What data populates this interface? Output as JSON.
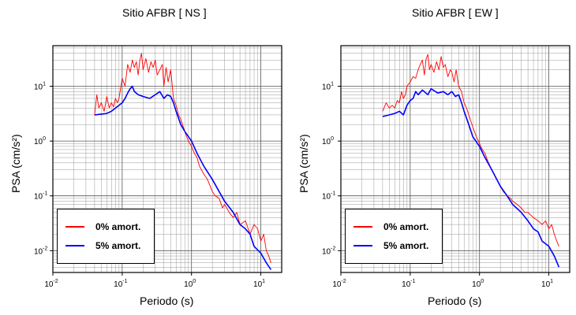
{
  "chart_data": [
    {
      "type": "line",
      "title": "Sitio AFBR [ NS ]",
      "xlabel": "Periodo (s)",
      "ylabel": "PSA (cm/s²)",
      "xscale": "log",
      "yscale": "log",
      "xlim": [
        0.01,
        20
      ],
      "ylim": [
        0.004,
        55
      ],
      "grid": true,
      "legend_placement": "bottom-left",
      "xticks": [
        {
          "base": "10",
          "exp": "-2"
        },
        {
          "base": "10",
          "exp": "-1"
        },
        {
          "base": "10",
          "exp": "0"
        },
        {
          "base": "10",
          "exp": "1"
        }
      ],
      "yticks": [
        {
          "base": "10",
          "exp": "-2"
        },
        {
          "base": "10",
          "exp": "-1"
        },
        {
          "base": "10",
          "exp": "0"
        },
        {
          "base": "10",
          "exp": "1"
        }
      ],
      "series": [
        {
          "name": "0% amort.",
          "color": "#ff0000",
          "x": [
            0.04,
            0.043,
            0.046,
            0.05,
            0.055,
            0.06,
            0.065,
            0.07,
            0.075,
            0.08,
            0.085,
            0.09,
            0.1,
            0.11,
            0.12,
            0.13,
            0.14,
            0.15,
            0.16,
            0.17,
            0.18,
            0.19,
            0.2,
            0.22,
            0.24,
            0.26,
            0.28,
            0.3,
            0.32,
            0.35,
            0.38,
            0.4,
            0.43,
            0.46,
            0.5,
            0.55,
            0.6,
            0.65,
            0.7,
            0.8,
            0.9,
            1.0,
            1.1,
            1.2,
            1.3,
            1.5,
            1.7,
            2.0,
            2.2,
            2.5,
            2.8,
            3.0,
            3.5,
            4.0,
            4.5,
            5.0,
            6.0,
            7.0,
            8.0,
            9.0,
            10.0,
            11.0,
            12.0,
            13.0,
            14.0
          ],
          "y": [
            3.0,
            7.0,
            4.0,
            5.0,
            3.5,
            6.5,
            4.0,
            5.0,
            4.2,
            6.0,
            5.0,
            6.0,
            14.0,
            10.0,
            25.0,
            18.0,
            30.0,
            22.0,
            28.0,
            16.0,
            30.0,
            40.0,
            20.0,
            32.0,
            18.0,
            28.0,
            22.0,
            30.0,
            16.0,
            20.0,
            25.0,
            10.0,
            22.0,
            12.0,
            20.0,
            6.0,
            4.5,
            3.0,
            2.5,
            1.5,
            1.0,
            0.8,
            0.6,
            0.5,
            0.35,
            0.25,
            0.2,
            0.12,
            0.1,
            0.09,
            0.06,
            0.07,
            0.05,
            0.04,
            0.05,
            0.03,
            0.035,
            0.02,
            0.03,
            0.025,
            0.015,
            0.02,
            0.01,
            0.008,
            0.006
          ]
        },
        {
          "name": "5% amort.",
          "color": "#0000ff",
          "x": [
            0.04,
            0.05,
            0.06,
            0.07,
            0.08,
            0.09,
            0.1,
            0.11,
            0.12,
            0.13,
            0.14,
            0.15,
            0.17,
            0.2,
            0.25,
            0.3,
            0.35,
            0.4,
            0.45,
            0.5,
            0.55,
            0.6,
            0.7,
            0.8,
            1.0,
            1.2,
            1.5,
            2.0,
            2.5,
            3.0,
            4.0,
            5.0,
            6.0,
            7.0,
            8.0,
            10.0,
            12.0,
            14.0
          ],
          "y": [
            3.0,
            3.1,
            3.2,
            3.5,
            4.0,
            4.5,
            5.0,
            6.0,
            7.5,
            9.0,
            10.0,
            8.0,
            7.0,
            6.5,
            6.0,
            7.0,
            8.0,
            6.0,
            7.0,
            6.5,
            5.0,
            3.5,
            2.0,
            1.5,
            1.0,
            0.6,
            0.35,
            0.2,
            0.12,
            0.08,
            0.05,
            0.03,
            0.025,
            0.02,
            0.012,
            0.009,
            0.006,
            0.0045
          ]
        }
      ]
    },
    {
      "type": "line",
      "title": "Sitio AFBR [ EW ]",
      "xlabel": "Periodo (s)",
      "ylabel": "PSA (cm/s²)",
      "xscale": "log",
      "yscale": "log",
      "xlim": [
        0.01,
        20
      ],
      "ylim": [
        0.004,
        55
      ],
      "grid": true,
      "legend_placement": "bottom-left",
      "xticks": [
        {
          "base": "10",
          "exp": "-2"
        },
        {
          "base": "10",
          "exp": "-1"
        },
        {
          "base": "10",
          "exp": "0"
        },
        {
          "base": "10",
          "exp": "1"
        }
      ],
      "yticks": [
        {
          "base": "10",
          "exp": "-2"
        },
        {
          "base": "10",
          "exp": "-1"
        },
        {
          "base": "10",
          "exp": "0"
        },
        {
          "base": "10",
          "exp": "1"
        }
      ],
      "series": [
        {
          "name": "0% amort.",
          "color": "#ff0000",
          "x": [
            0.04,
            0.045,
            0.05,
            0.055,
            0.06,
            0.065,
            0.07,
            0.075,
            0.08,
            0.085,
            0.09,
            0.1,
            0.11,
            0.12,
            0.13,
            0.14,
            0.15,
            0.16,
            0.17,
            0.18,
            0.19,
            0.2,
            0.22,
            0.24,
            0.26,
            0.28,
            0.3,
            0.32,
            0.35,
            0.38,
            0.4,
            0.43,
            0.46,
            0.5,
            0.55,
            0.6,
            0.65,
            0.7,
            0.8,
            0.9,
            1.0,
            1.1,
            1.2,
            1.3,
            1.5,
            1.7,
            2.0,
            2.2,
            2.5,
            2.8,
            3.0,
            3.5,
            4.0,
            4.5,
            5.0,
            6.0,
            7.0,
            8.0,
            9.0,
            10.0,
            11.0,
            12.0,
            13.0,
            14.0
          ],
          "y": [
            3.5,
            5.0,
            4.0,
            4.5,
            4.0,
            5.5,
            5.0,
            8.0,
            6.0,
            7.0,
            10.0,
            12.0,
            15.0,
            14.0,
            20.0,
            25.0,
            30.0,
            16.0,
            32.0,
            38.0,
            20.0,
            25.0,
            18.0,
            28.0,
            20.0,
            35.0,
            22.0,
            25.0,
            15.0,
            20.0,
            18.0,
            12.0,
            20.0,
            10.0,
            8.0,
            5.0,
            4.0,
            3.0,
            1.8,
            1.2,
            0.9,
            0.7,
            0.6,
            0.45,
            0.3,
            0.22,
            0.15,
            0.12,
            0.1,
            0.09,
            0.08,
            0.07,
            0.06,
            0.05,
            0.05,
            0.04,
            0.035,
            0.03,
            0.035,
            0.025,
            0.03,
            0.02,
            0.015,
            0.012
          ]
        },
        {
          "name": "5% amort.",
          "color": "#0000ff",
          "x": [
            0.04,
            0.05,
            0.06,
            0.07,
            0.08,
            0.09,
            0.1,
            0.11,
            0.12,
            0.13,
            0.15,
            0.18,
            0.2,
            0.25,
            0.3,
            0.35,
            0.4,
            0.45,
            0.5,
            0.55,
            0.6,
            0.7,
            0.8,
            1.0,
            1.2,
            1.5,
            2.0,
            2.5,
            3.0,
            4.0,
            5.0,
            6.0,
            7.0,
            8.0,
            10.0,
            12.0,
            14.0
          ],
          "y": [
            2.8,
            3.0,
            3.2,
            3.5,
            3.0,
            4.5,
            5.5,
            6.0,
            8.0,
            7.0,
            8.5,
            7.0,
            9.0,
            7.5,
            8.0,
            7.0,
            8.0,
            6.5,
            7.0,
            5.0,
            3.5,
            2.0,
            1.2,
            0.8,
            0.5,
            0.3,
            0.15,
            0.1,
            0.07,
            0.05,
            0.035,
            0.025,
            0.022,
            0.015,
            0.012,
            0.008,
            0.005
          ]
        }
      ]
    }
  ]
}
